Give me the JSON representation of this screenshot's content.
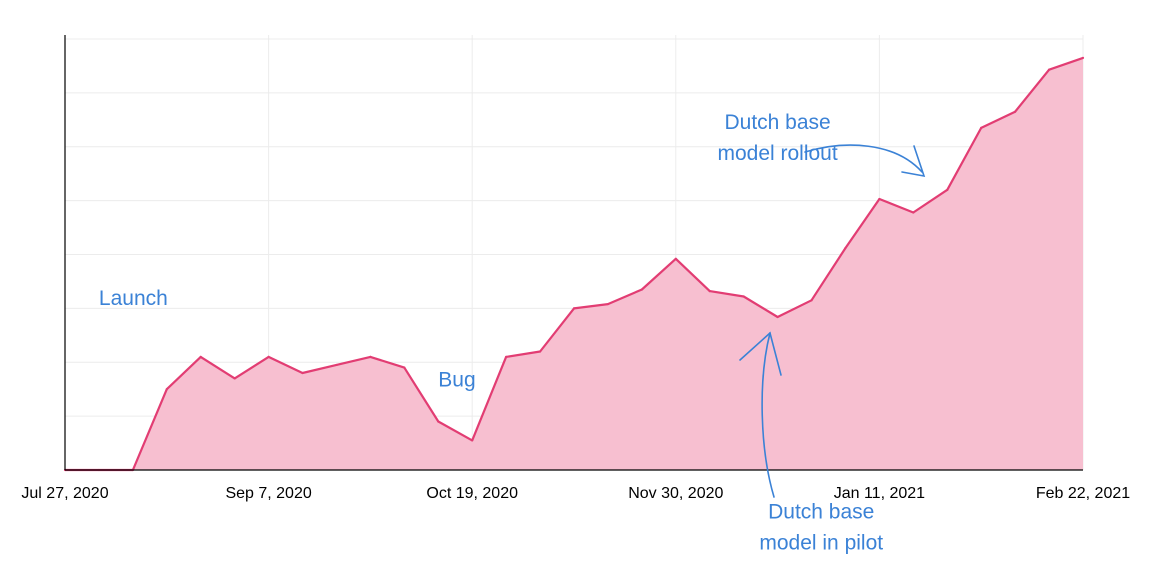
{
  "chart_data": {
    "type": "area",
    "title": "",
    "xlabel": "",
    "ylabel": "",
    "x_range": [
      "2020-07-27",
      "2021-02-22"
    ],
    "y_range": [
      0,
      8
    ],
    "x_tick_labels": [
      "Jul 27, 2020",
      "Sep 7, 2020",
      "Oct 19, 2020",
      "Nov 30, 2020",
      "Jan 11, 2021",
      "Feb 22, 2021"
    ],
    "x_tick_dates": [
      "2020-07-27",
      "2020-09-07",
      "2020-10-19",
      "2020-11-30",
      "2021-01-11",
      "2021-02-22"
    ],
    "y_gridlines": [
      1,
      2,
      3,
      4,
      5,
      6,
      7,
      8
    ],
    "y_tick_labels_shown": false,
    "grid": true,
    "legend": "none",
    "line_color": "#e23d73",
    "fill_color": "#f7bfd0",
    "series": [
      {
        "x": [
          "2020-07-27",
          "2020-08-03",
          "2020-08-10",
          "2020-08-17",
          "2020-08-24",
          "2020-08-31",
          "2020-09-07",
          "2020-09-14",
          "2020-09-21",
          "2020-09-28",
          "2020-10-05",
          "2020-10-12",
          "2020-10-19",
          "2020-10-26",
          "2020-11-02",
          "2020-11-09",
          "2020-11-16",
          "2020-11-23",
          "2020-11-30",
          "2020-12-07",
          "2020-12-14",
          "2020-12-21",
          "2020-12-28",
          "2021-01-04",
          "2021-01-11",
          "2021-01-18",
          "2021-01-25",
          "2021-02-01",
          "2021-02-08",
          "2021-02-15",
          "2021-02-22"
        ],
        "values": [
          0,
          0,
          0,
          1.5,
          2.1,
          1.7,
          2.1,
          1.8,
          1.95,
          2.1,
          1.9,
          0.9,
          0.55,
          2.1,
          2.2,
          3.0,
          3.08,
          3.35,
          3.92,
          3.32,
          3.22,
          2.84,
          3.15,
          4.12,
          5.03,
          4.78,
          5.2,
          6.35,
          6.65,
          7.43,
          7.65
        ]
      }
    ],
    "annotations": [
      {
        "text": "Launch",
        "x": "2020-08-03",
        "y": 3.06,
        "color": "#3b82d6"
      },
      {
        "text": "Bug",
        "x": "2020-10-12",
        "y": 1.55,
        "color": "#3b82d6"
      },
      {
        "text": [
          "Dutch base",
          "model rollout"
        ],
        "x": "2020-12-21",
        "y": 6.33,
        "color": "#3b82d6",
        "target_x": "2021-01-22",
        "target_y": 5.4
      },
      {
        "text": [
          "Dutch base",
          "model in pilot"
        ],
        "x": "2020-12-30",
        "y": -0.9,
        "color": "#3b82d6",
        "target_x": "2020-12-23",
        "target_y": 2.55
      }
    ]
  }
}
